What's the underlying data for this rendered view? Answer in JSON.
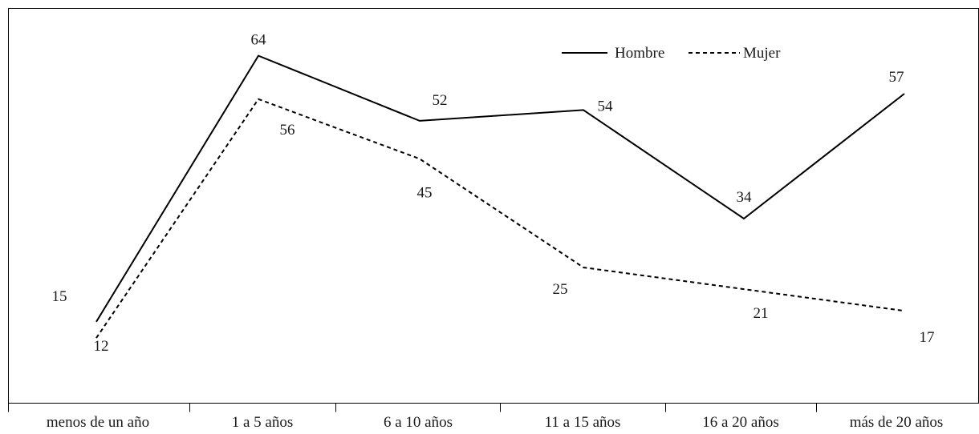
{
  "chart_data": {
    "type": "line",
    "title": "",
    "xlabel": "",
    "ylabel": "",
    "categories": [
      "menos de un año",
      "1 a 5 años",
      "6 a 10 años",
      "11 a 15 años",
      "16 a 20 años",
      "más de 20 años"
    ],
    "series": [
      {
        "name": "Hombre",
        "values": [
          15,
          64,
          52,
          54,
          34,
          57
        ],
        "style": "solid",
        "color": "#000000"
      },
      {
        "name": "Mujer",
        "values": [
          12,
          56,
          45,
          25,
          21,
          17
        ],
        "style": "dashed",
        "color": "#000000"
      }
    ],
    "ylim": [
      0,
      72
    ],
    "grid": false,
    "legend": "top-right",
    "data_labels": true
  }
}
